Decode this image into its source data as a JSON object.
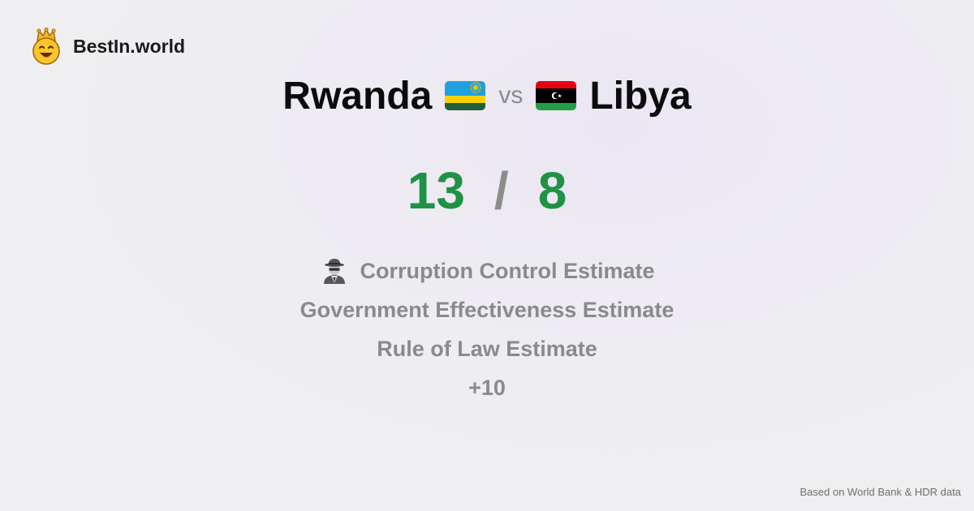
{
  "brand": {
    "name": "BestIn.world",
    "icon": "smiling-face-with-crown-icon"
  },
  "title": {
    "left_country": "Rwanda",
    "vs": "vs",
    "right_country": "Libya"
  },
  "score": {
    "left": "13",
    "separator": "/",
    "right": "8"
  },
  "metrics": [
    {
      "label": "Corruption Control Estimate",
      "icon": "detective-icon"
    },
    {
      "label": "Government Effectiveness Estimate"
    },
    {
      "label": "Rule of Law Estimate"
    },
    {
      "label": "+10"
    }
  ],
  "footer": {
    "source": "Based on World Bank & HDR data"
  },
  "colors": {
    "score_green": "#1f9245",
    "muted_gray": "#8a8a8a",
    "rwanda_blue": "#20a1de",
    "rwanda_yellow": "#fad201",
    "rwanda_green": "#20603d",
    "libya_red": "#e70013",
    "libya_black": "#000000",
    "libya_green": "#239e46"
  }
}
